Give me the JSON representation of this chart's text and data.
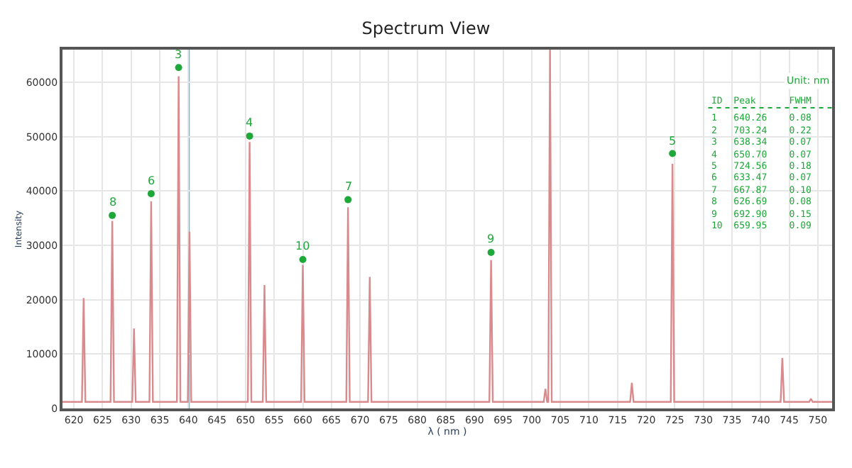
{
  "chart_data": {
    "type": "line",
    "title": "Spectrum View",
    "xlabel": "λ ( nm )",
    "ylabel": "Intensity",
    "xlim": [
      618,
      752.5
    ],
    "xticks": [
      620,
      625,
      630,
      635,
      640,
      645,
      650,
      655,
      660,
      665,
      670,
      675,
      680,
      685,
      690,
      695,
      700,
      705,
      710,
      715,
      720,
      725,
      730,
      735,
      740,
      745,
      750
    ],
    "ylim": [
      0,
      66000
    ],
    "yticks": [
      0,
      10000,
      20000,
      30000,
      40000,
      50000,
      60000
    ],
    "grid": true,
    "legend": false,
    "series": [
      {
        "color": "#d98a8c",
        "line_style": "solid",
        "marker": "none",
        "x": [
          618,
          621.4,
          621.7,
          622.0,
          626.4,
          626.7,
          627.0,
          630.2,
          630.5,
          630.8,
          633.2,
          633.5,
          633.8,
          638.0,
          638.3,
          638.6,
          639.9,
          640.2,
          640.5,
          650.4,
          650.7,
          651.0,
          653.0,
          653.3,
          653.6,
          659.7,
          660.0,
          660.3,
          667.6,
          667.9,
          668.2,
          671.4,
          671.7,
          672.0,
          692.6,
          692.9,
          693.2,
          702.1,
          702.4,
          702.7,
          702.9,
          703.2,
          703.5,
          717.2,
          717.5,
          717.8,
          724.3,
          724.6,
          724.9,
          743.5,
          743.8,
          744.1,
          748.5,
          748.8,
          749.1,
          752.5
        ],
        "values": [
          1200,
          1200,
          20300,
          1200,
          1200,
          34500,
          1200,
          1200,
          14700,
          1200,
          1200,
          38100,
          1200,
          1200,
          61100,
          1200,
          1200,
          32500,
          1200,
          1200,
          49000,
          1200,
          1200,
          22700,
          1200,
          1200,
          26400,
          1200,
          1200,
          37000,
          1200,
          1200,
          24200,
          1200,
          1200,
          27300,
          1200,
          1200,
          3600,
          1200,
          1200,
          66000,
          1200,
          1200,
          4700,
          1200,
          1200,
          45000,
          1200,
          1200,
          9300,
          1200,
          1200,
          1800,
          1200,
          1200
        ]
      },
      {
        "type": "scatter",
        "color": "#1fa83a",
        "marker": "circle",
        "x": [
          626.7,
          633.5,
          638.3,
          650.7,
          660.0,
          667.9,
          692.9,
          724.6
        ],
        "values": [
          35500,
          39500,
          62700,
          50100,
          27400,
          38400,
          28700,
          46900
        ]
      }
    ],
    "ref_lines": [
      {
        "axis": "x",
        "value": 640.1,
        "color": "#8fb0bd",
        "line_style": "solid"
      }
    ],
    "annotations": [
      {
        "text": "8",
        "x": 626.7,
        "y": 35500
      },
      {
        "text": "6",
        "x": 633.5,
        "y": 39500
      },
      {
        "text": "3",
        "x": 638.3,
        "y": 62700
      },
      {
        "text": "4",
        "x": 650.7,
        "y": 50100
      },
      {
        "text": "10",
        "x": 660.0,
        "y": 27400
      },
      {
        "text": "7",
        "x": 667.9,
        "y": 38400
      },
      {
        "text": "9",
        "x": 692.9,
        "y": 28700
      },
      {
        "text": "5",
        "x": 724.6,
        "y": 46900
      },
      "Unit: nm",
      "ID  Peak      FWHM",
      "1   640.26    0.08",
      "2   703.24    0.22",
      "3   638.34    0.07",
      "4   650.70    0.07",
      "5   724.56    0.18",
      "6   633.47    0.07",
      "7   667.87    0.10",
      "8   626.69    0.08",
      "9   692.90    0.15",
      "10  659.95    0.09"
    ]
  }
}
